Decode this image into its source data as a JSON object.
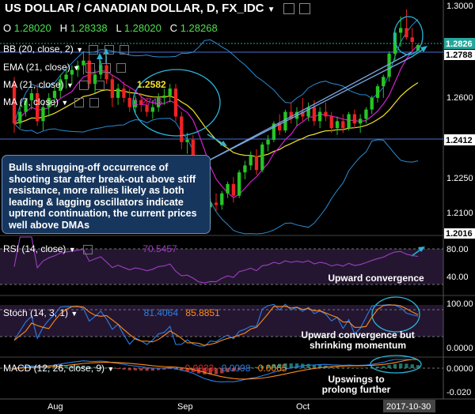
{
  "header": {
    "title": "US DOLLAR / CANADIAN DOLLAR, D, FX_IDC",
    "ohlc": [
      {
        "k": "O",
        "v": "1.28020"
      },
      {
        "k": "H",
        "v": "1.28338"
      },
      {
        "k": "L",
        "v": "1.28020"
      },
      {
        "k": "C",
        "v": "1.28268"
      }
    ]
  },
  "indicators": [
    {
      "label": "BB (20, close, 2)"
    },
    {
      "label": "EMA (21, close)"
    },
    {
      "label": "MA (21, close)",
      "value": "1.2582"
    },
    {
      "label": "MA (7, close)",
      "value": "1.2746"
    }
  ],
  "note": "Bulls shrugging-off occurrence of shooting star after break-out above stiff resistance, more rallies likely as both leading & lagging oscillators indicate uptrend continuation, the current prices well above DMAs",
  "panes": {
    "rsi": {
      "label": "RSI (14, close)",
      "value": "70.5457",
      "annotation": "Upward convergence"
    },
    "stoch": {
      "label": "Stoch (14, 3, 1)",
      "k": "81.4064",
      "d": "85.8851",
      "annotation": "Upward convergence but shrinking momentum"
    },
    "macd": {
      "label": "MACD (12, 26, close, 9)",
      "hist": "0.0033",
      "macd": "0.0098",
      "signal": "0.0065",
      "annotation": "Upswings to prolong further"
    }
  },
  "axis": {
    "price_ticks": [
      "1.3000",
      "1.2600",
      "1.2250",
      "1.2100"
    ],
    "price_badges": [
      {
        "v": "1.2826",
        "color": "#26a69a"
      },
      {
        "v": "1.2788",
        "color": "#ffffff"
      },
      {
        "v": "1.2412",
        "color": "#ffffff"
      },
      {
        "v": "1.2016",
        "color": "#ffffff"
      }
    ],
    "rsi_ticks": [
      "80.00",
      "40.00"
    ],
    "stoch_ticks": [
      "100.00",
      "0.0000"
    ],
    "macd_ticks": [
      "0.0000",
      "-0.020"
    ],
    "time_ticks": [
      "Aug",
      "Sep",
      "Oct"
    ],
    "time_badge": "2017-10-30"
  },
  "colors": {
    "up": "#26c526",
    "down": "#ee2222",
    "bb": "#2a8bd1",
    "ema": "#f2e12b",
    "ma7": "#d020d0",
    "rsi": "#9c3fbf",
    "stoch_k": "#2a7fe8",
    "stoch_d": "#ff8c1a",
    "macd": "#2a7fe8",
    "signal": "#ff8c1a",
    "hist": "#26a69a"
  },
  "chart_data": {
    "type": "candlestick",
    "title": "US DOLLAR / CANADIAN DOLLAR, D, FX_IDC",
    "ylim": [
      1.2016,
      1.3
    ],
    "x_labels": [
      "Aug",
      "Sep",
      "Oct",
      "2017-10-30"
    ],
    "candles": [
      {
        "o": 1.266,
        "h": 1.269,
        "l": 1.245,
        "c": 1.249
      },
      {
        "o": 1.249,
        "h": 1.257,
        "l": 1.247,
        "c": 1.254
      },
      {
        "o": 1.254,
        "h": 1.26,
        "l": 1.252,
        "c": 1.259
      },
      {
        "o": 1.259,
        "h": 1.264,
        "l": 1.255,
        "c": 1.262
      },
      {
        "o": 1.262,
        "h": 1.266,
        "l": 1.248,
        "c": 1.25
      },
      {
        "o": 1.25,
        "h": 1.258,
        "l": 1.246,
        "c": 1.256
      },
      {
        "o": 1.256,
        "h": 1.262,
        "l": 1.252,
        "c": 1.26
      },
      {
        "o": 1.26,
        "h": 1.265,
        "l": 1.256,
        "c": 1.263
      },
      {
        "o": 1.263,
        "h": 1.27,
        "l": 1.26,
        "c": 1.268
      },
      {
        "o": 1.268,
        "h": 1.272,
        "l": 1.264,
        "c": 1.27
      },
      {
        "o": 1.27,
        "h": 1.274,
        "l": 1.266,
        "c": 1.272
      },
      {
        "o": 1.272,
        "h": 1.276,
        "l": 1.269,
        "c": 1.274
      },
      {
        "o": 1.274,
        "h": 1.28,
        "l": 1.27,
        "c": 1.276
      },
      {
        "o": 1.276,
        "h": 1.28,
        "l": 1.264,
        "c": 1.266
      },
      {
        "o": 1.266,
        "h": 1.272,
        "l": 1.262,
        "c": 1.27
      },
      {
        "o": 1.27,
        "h": 1.276,
        "l": 1.268,
        "c": 1.274
      },
      {
        "o": 1.274,
        "h": 1.278,
        "l": 1.266,
        "c": 1.268
      },
      {
        "o": 1.268,
        "h": 1.27,
        "l": 1.256,
        "c": 1.26
      },
      {
        "o": 1.26,
        "h": 1.266,
        "l": 1.257,
        "c": 1.264
      },
      {
        "o": 1.264,
        "h": 1.267,
        "l": 1.258,
        "c": 1.26
      },
      {
        "o": 1.26,
        "h": 1.264,
        "l": 1.254,
        "c": 1.256
      },
      {
        "o": 1.256,
        "h": 1.261,
        "l": 1.253,
        "c": 1.259
      },
      {
        "o": 1.259,
        "h": 1.262,
        "l": 1.254,
        "c": 1.257
      },
      {
        "o": 1.257,
        "h": 1.26,
        "l": 1.252,
        "c": 1.254
      },
      {
        "o": 1.254,
        "h": 1.259,
        "l": 1.251,
        "c": 1.256
      },
      {
        "o": 1.256,
        "h": 1.262,
        "l": 1.254,
        "c": 1.26
      },
      {
        "o": 1.26,
        "h": 1.264,
        "l": 1.257,
        "c": 1.261
      },
      {
        "o": 1.261,
        "h": 1.266,
        "l": 1.258,
        "c": 1.264
      },
      {
        "o": 1.264,
        "h": 1.266,
        "l": 1.25,
        "c": 1.252
      },
      {
        "o": 1.252,
        "h": 1.254,
        "l": 1.238,
        "c": 1.241
      },
      {
        "o": 1.241,
        "h": 1.245,
        "l": 1.236,
        "c": 1.242
      },
      {
        "o": 1.242,
        "h": 1.244,
        "l": 1.23,
        "c": 1.233
      },
      {
        "o": 1.233,
        "h": 1.235,
        "l": 1.216,
        "c": 1.218
      },
      {
        "o": 1.218,
        "h": 1.22,
        "l": 1.211,
        "c": 1.213
      },
      {
        "o": 1.213,
        "h": 1.217,
        "l": 1.206,
        "c": 1.215
      },
      {
        "o": 1.215,
        "h": 1.219,
        "l": 1.211,
        "c": 1.214
      },
      {
        "o": 1.214,
        "h": 1.22,
        "l": 1.212,
        "c": 1.219
      },
      {
        "o": 1.219,
        "h": 1.224,
        "l": 1.217,
        "c": 1.223
      },
      {
        "o": 1.223,
        "h": 1.226,
        "l": 1.215,
        "c": 1.218
      },
      {
        "o": 1.218,
        "h": 1.229,
        "l": 1.217,
        "c": 1.228
      },
      {
        "o": 1.228,
        "h": 1.233,
        "l": 1.225,
        "c": 1.231
      },
      {
        "o": 1.231,
        "h": 1.237,
        "l": 1.229,
        "c": 1.235
      },
      {
        "o": 1.235,
        "h": 1.238,
        "l": 1.227,
        "c": 1.229
      },
      {
        "o": 1.229,
        "h": 1.241,
        "l": 1.228,
        "c": 1.24
      },
      {
        "o": 1.24,
        "h": 1.244,
        "l": 1.237,
        "c": 1.242
      },
      {
        "o": 1.242,
        "h": 1.25,
        "l": 1.241,
        "c": 1.249
      },
      {
        "o": 1.249,
        "h": 1.253,
        "l": 1.244,
        "c": 1.246
      },
      {
        "o": 1.246,
        "h": 1.255,
        "l": 1.245,
        "c": 1.254
      },
      {
        "o": 1.254,
        "h": 1.258,
        "l": 1.249,
        "c": 1.251
      },
      {
        "o": 1.251,
        "h": 1.256,
        "l": 1.248,
        "c": 1.254
      },
      {
        "o": 1.254,
        "h": 1.26,
        "l": 1.25,
        "c": 1.252
      },
      {
        "o": 1.252,
        "h": 1.258,
        "l": 1.25,
        "c": 1.256
      },
      {
        "o": 1.256,
        "h": 1.259,
        "l": 1.248,
        "c": 1.25
      },
      {
        "o": 1.25,
        "h": 1.256,
        "l": 1.247,
        "c": 1.254
      },
      {
        "o": 1.254,
        "h": 1.258,
        "l": 1.25,
        "c": 1.252
      },
      {
        "o": 1.252,
        "h": 1.254,
        "l": 1.245,
        "c": 1.247
      },
      {
        "o": 1.247,
        "h": 1.252,
        "l": 1.244,
        "c": 1.25
      },
      {
        "o": 1.25,
        "h": 1.253,
        "l": 1.245,
        "c": 1.247
      },
      {
        "o": 1.247,
        "h": 1.254,
        "l": 1.246,
        "c": 1.253
      },
      {
        "o": 1.253,
        "h": 1.255,
        "l": 1.247,
        "c": 1.249
      },
      {
        "o": 1.249,
        "h": 1.253,
        "l": 1.245,
        "c": 1.251
      },
      {
        "o": 1.251,
        "h": 1.256,
        "l": 1.249,
        "c": 1.255
      },
      {
        "o": 1.255,
        "h": 1.261,
        "l": 1.253,
        "c": 1.26
      },
      {
        "o": 1.26,
        "h": 1.266,
        "l": 1.258,
        "c": 1.265
      },
      {
        "o": 1.265,
        "h": 1.27,
        "l": 1.26,
        "c": 1.269
      },
      {
        "o": 1.269,
        "h": 1.28,
        "l": 1.267,
        "c": 1.279
      },
      {
        "o": 1.279,
        "h": 1.29,
        "l": 1.276,
        "c": 1.288
      },
      {
        "o": 1.288,
        "h": 1.295,
        "l": 1.282,
        "c": 1.29
      },
      {
        "o": 1.29,
        "h": 1.298,
        "l": 1.285,
        "c": 1.286
      },
      {
        "o": 1.286,
        "h": 1.29,
        "l": 1.28,
        "c": 1.284
      },
      {
        "o": 1.2802,
        "h": 1.2834,
        "l": 1.2802,
        "c": 1.2827
      }
    ]
  }
}
